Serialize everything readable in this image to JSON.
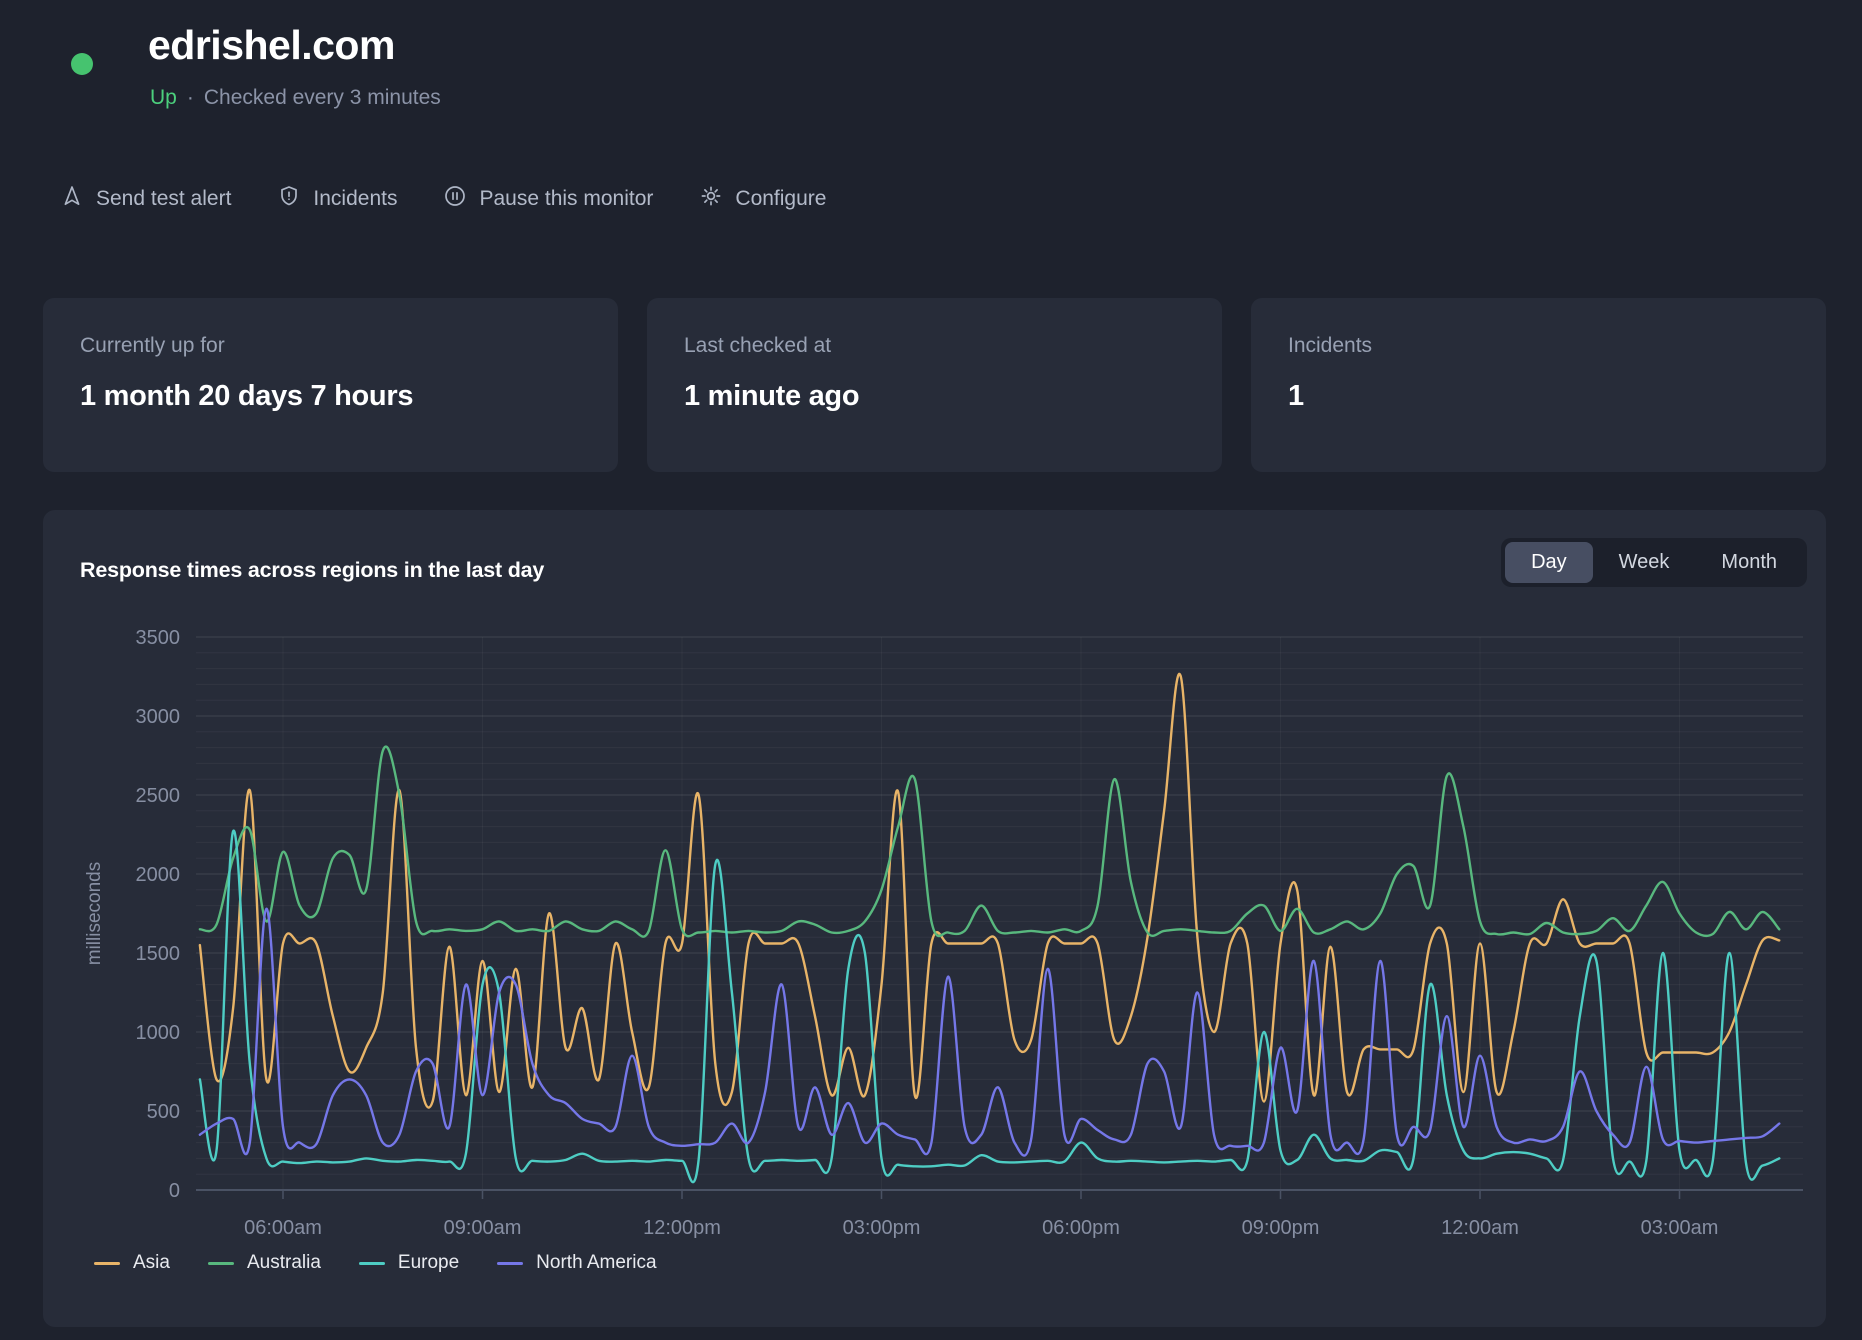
{
  "header": {
    "domain": "edrishel.com",
    "status": "Up",
    "separator": "·",
    "check_info": "Checked every 3 minutes",
    "status_color": "#46c36f",
    "up_color": "#4cd07d"
  },
  "actions": [
    {
      "id": "send-test-alert",
      "label": "Send test alert",
      "icon": "send-alert-icon"
    },
    {
      "id": "incidents",
      "label": "Incidents",
      "icon": "shield-alert-icon"
    },
    {
      "id": "pause-monitor",
      "label": "Pause this monitor",
      "icon": "pause-circle-icon"
    },
    {
      "id": "configure",
      "label": "Configure",
      "icon": "gear-icon"
    }
  ],
  "stats": [
    {
      "label": "Currently up for",
      "value": "1 month 20 days 7 hours"
    },
    {
      "label": "Last checked at",
      "value": "1 minute ago"
    },
    {
      "label": "Incidents",
      "value": "1"
    }
  ],
  "chart": {
    "title": "Response times across regions in the last day",
    "range_tabs": [
      {
        "id": "day",
        "label": "Day",
        "active": true
      },
      {
        "id": "week",
        "label": "Week",
        "active": false
      },
      {
        "id": "month",
        "label": "Month",
        "active": false
      }
    ]
  },
  "chart_data": {
    "type": "line",
    "title": "Response times across regions in the last day",
    "xlabel": "",
    "ylabel": "milliseconds",
    "ylim": [
      0,
      3500
    ],
    "y_tick_step": 500,
    "y_minor_step": 100,
    "grid": true,
    "legend_position": "bottom",
    "x_start_hour": 4.75,
    "x_step_hours": 0.25,
    "x_ticks": [
      {
        "hour": 6,
        "label": "06:00am"
      },
      {
        "hour": 9,
        "label": "09:00am"
      },
      {
        "hour": 12,
        "label": "12:00pm"
      },
      {
        "hour": 15,
        "label": "03:00pm"
      },
      {
        "hour": 18,
        "label": "06:00pm"
      },
      {
        "hour": 21,
        "label": "09:00pm"
      },
      {
        "hour": 24,
        "label": "12:00am"
      },
      {
        "hour": 27,
        "label": "03:00am"
      }
    ],
    "series": [
      {
        "name": "Asia",
        "color": "#e8b468",
        "values": [
          1550,
          700,
          1150,
          2530,
          700,
          1560,
          1560,
          1560,
          1100,
          750,
          900,
          1250,
          2530,
          900,
          560,
          1540,
          600,
          1450,
          620,
          1400,
          650,
          1750,
          900,
          1150,
          700,
          1560,
          1000,
          650,
          1560,
          1560,
          2500,
          800,
          620,
          1560,
          1560,
          1560,
          1560,
          1100,
          600,
          900,
          600,
          1300,
          2520,
          600,
          1560,
          1560,
          1560,
          1560,
          1560,
          950,
          950,
          1560,
          1560,
          1560,
          1560,
          950,
          1100,
          1600,
          2400,
          3250,
          1600,
          1000,
          1560,
          1560,
          560,
          1560,
          1900,
          600,
          1540,
          620,
          890,
          890,
          890,
          890,
          1560,
          1560,
          620,
          1560,
          620,
          1000,
          1560,
          1560,
          1840,
          1560,
          1560,
          1560,
          1560,
          870,
          870,
          870,
          870,
          870,
          1000,
          1300,
          1580,
          1580
        ]
      },
      {
        "name": "Australia",
        "color": "#58b87e",
        "values": [
          1650,
          1680,
          2100,
          2280,
          1700,
          2140,
          1800,
          1750,
          2100,
          2120,
          1900,
          2780,
          2500,
          1700,
          1640,
          1650,
          1640,
          1650,
          1700,
          1640,
          1650,
          1640,
          1700,
          1650,
          1640,
          1700,
          1650,
          1640,
          2150,
          1650,
          1630,
          1640,
          1630,
          1640,
          1630,
          1640,
          1700,
          1680,
          1630,
          1640,
          1700,
          1900,
          2300,
          2600,
          1700,
          1630,
          1640,
          1800,
          1640,
          1630,
          1640,
          1630,
          1650,
          1640,
          1800,
          2600,
          1950,
          1630,
          1640,
          1650,
          1640,
          1630,
          1640,
          1750,
          1800,
          1640,
          1780,
          1630,
          1650,
          1700,
          1650,
          1750,
          2000,
          2050,
          1800,
          2620,
          2300,
          1700,
          1620,
          1630,
          1620,
          1690,
          1630,
          1620,
          1640,
          1720,
          1640,
          1800,
          1950,
          1750,
          1630,
          1620,
          1760,
          1650,
          1760,
          1650
        ]
      },
      {
        "name": "Europe",
        "color": "#4ecdc4",
        "values": [
          700,
          250,
          2270,
          800,
          200,
          180,
          170,
          180,
          175,
          180,
          200,
          185,
          180,
          190,
          185,
          180,
          230,
          1300,
          1250,
          200,
          185,
          180,
          190,
          230,
          185,
          180,
          185,
          180,
          190,
          185,
          190,
          2060,
          1250,
          200,
          185,
          190,
          185,
          190,
          200,
          1400,
          1500,
          200,
          160,
          150,
          150,
          160,
          155,
          220,
          180,
          175,
          180,
          185,
          180,
          300,
          200,
          180,
          185,
          180,
          175,
          180,
          185,
          180,
          190,
          185,
          1000,
          250,
          190,
          350,
          200,
          190,
          185,
          250,
          240,
          200,
          1300,
          600,
          250,
          200,
          230,
          240,
          230,
          200,
          190,
          1100,
          1450,
          200,
          180,
          185,
          1500,
          250,
          190,
          185,
          1500,
          170,
          155,
          200
        ]
      },
      {
        "name": "North America",
        "color": "#7577e8",
        "values": [
          350,
          420,
          450,
          300,
          1780,
          400,
          300,
          290,
          600,
          700,
          600,
          300,
          350,
          750,
          800,
          400,
          1300,
          600,
          1250,
          1300,
          800,
          600,
          550,
          450,
          420,
          400,
          850,
          400,
          300,
          280,
          290,
          300,
          420,
          300,
          620,
          1300,
          400,
          650,
          350,
          550,
          300,
          420,
          350,
          320,
          300,
          1350,
          400,
          350,
          650,
          300,
          320,
          1400,
          350,
          450,
          380,
          320,
          350,
          800,
          750,
          400,
          1250,
          350,
          280,
          280,
          300,
          900,
          500,
          1450,
          350,
          300,
          320,
          1450,
          350,
          400,
          380,
          1100,
          400,
          850,
          400,
          300,
          320,
          310,
          400,
          750,
          500,
          350,
          300,
          780,
          320,
          310,
          300,
          310,
          320,
          330,
          340,
          420
        ]
      }
    ]
  }
}
